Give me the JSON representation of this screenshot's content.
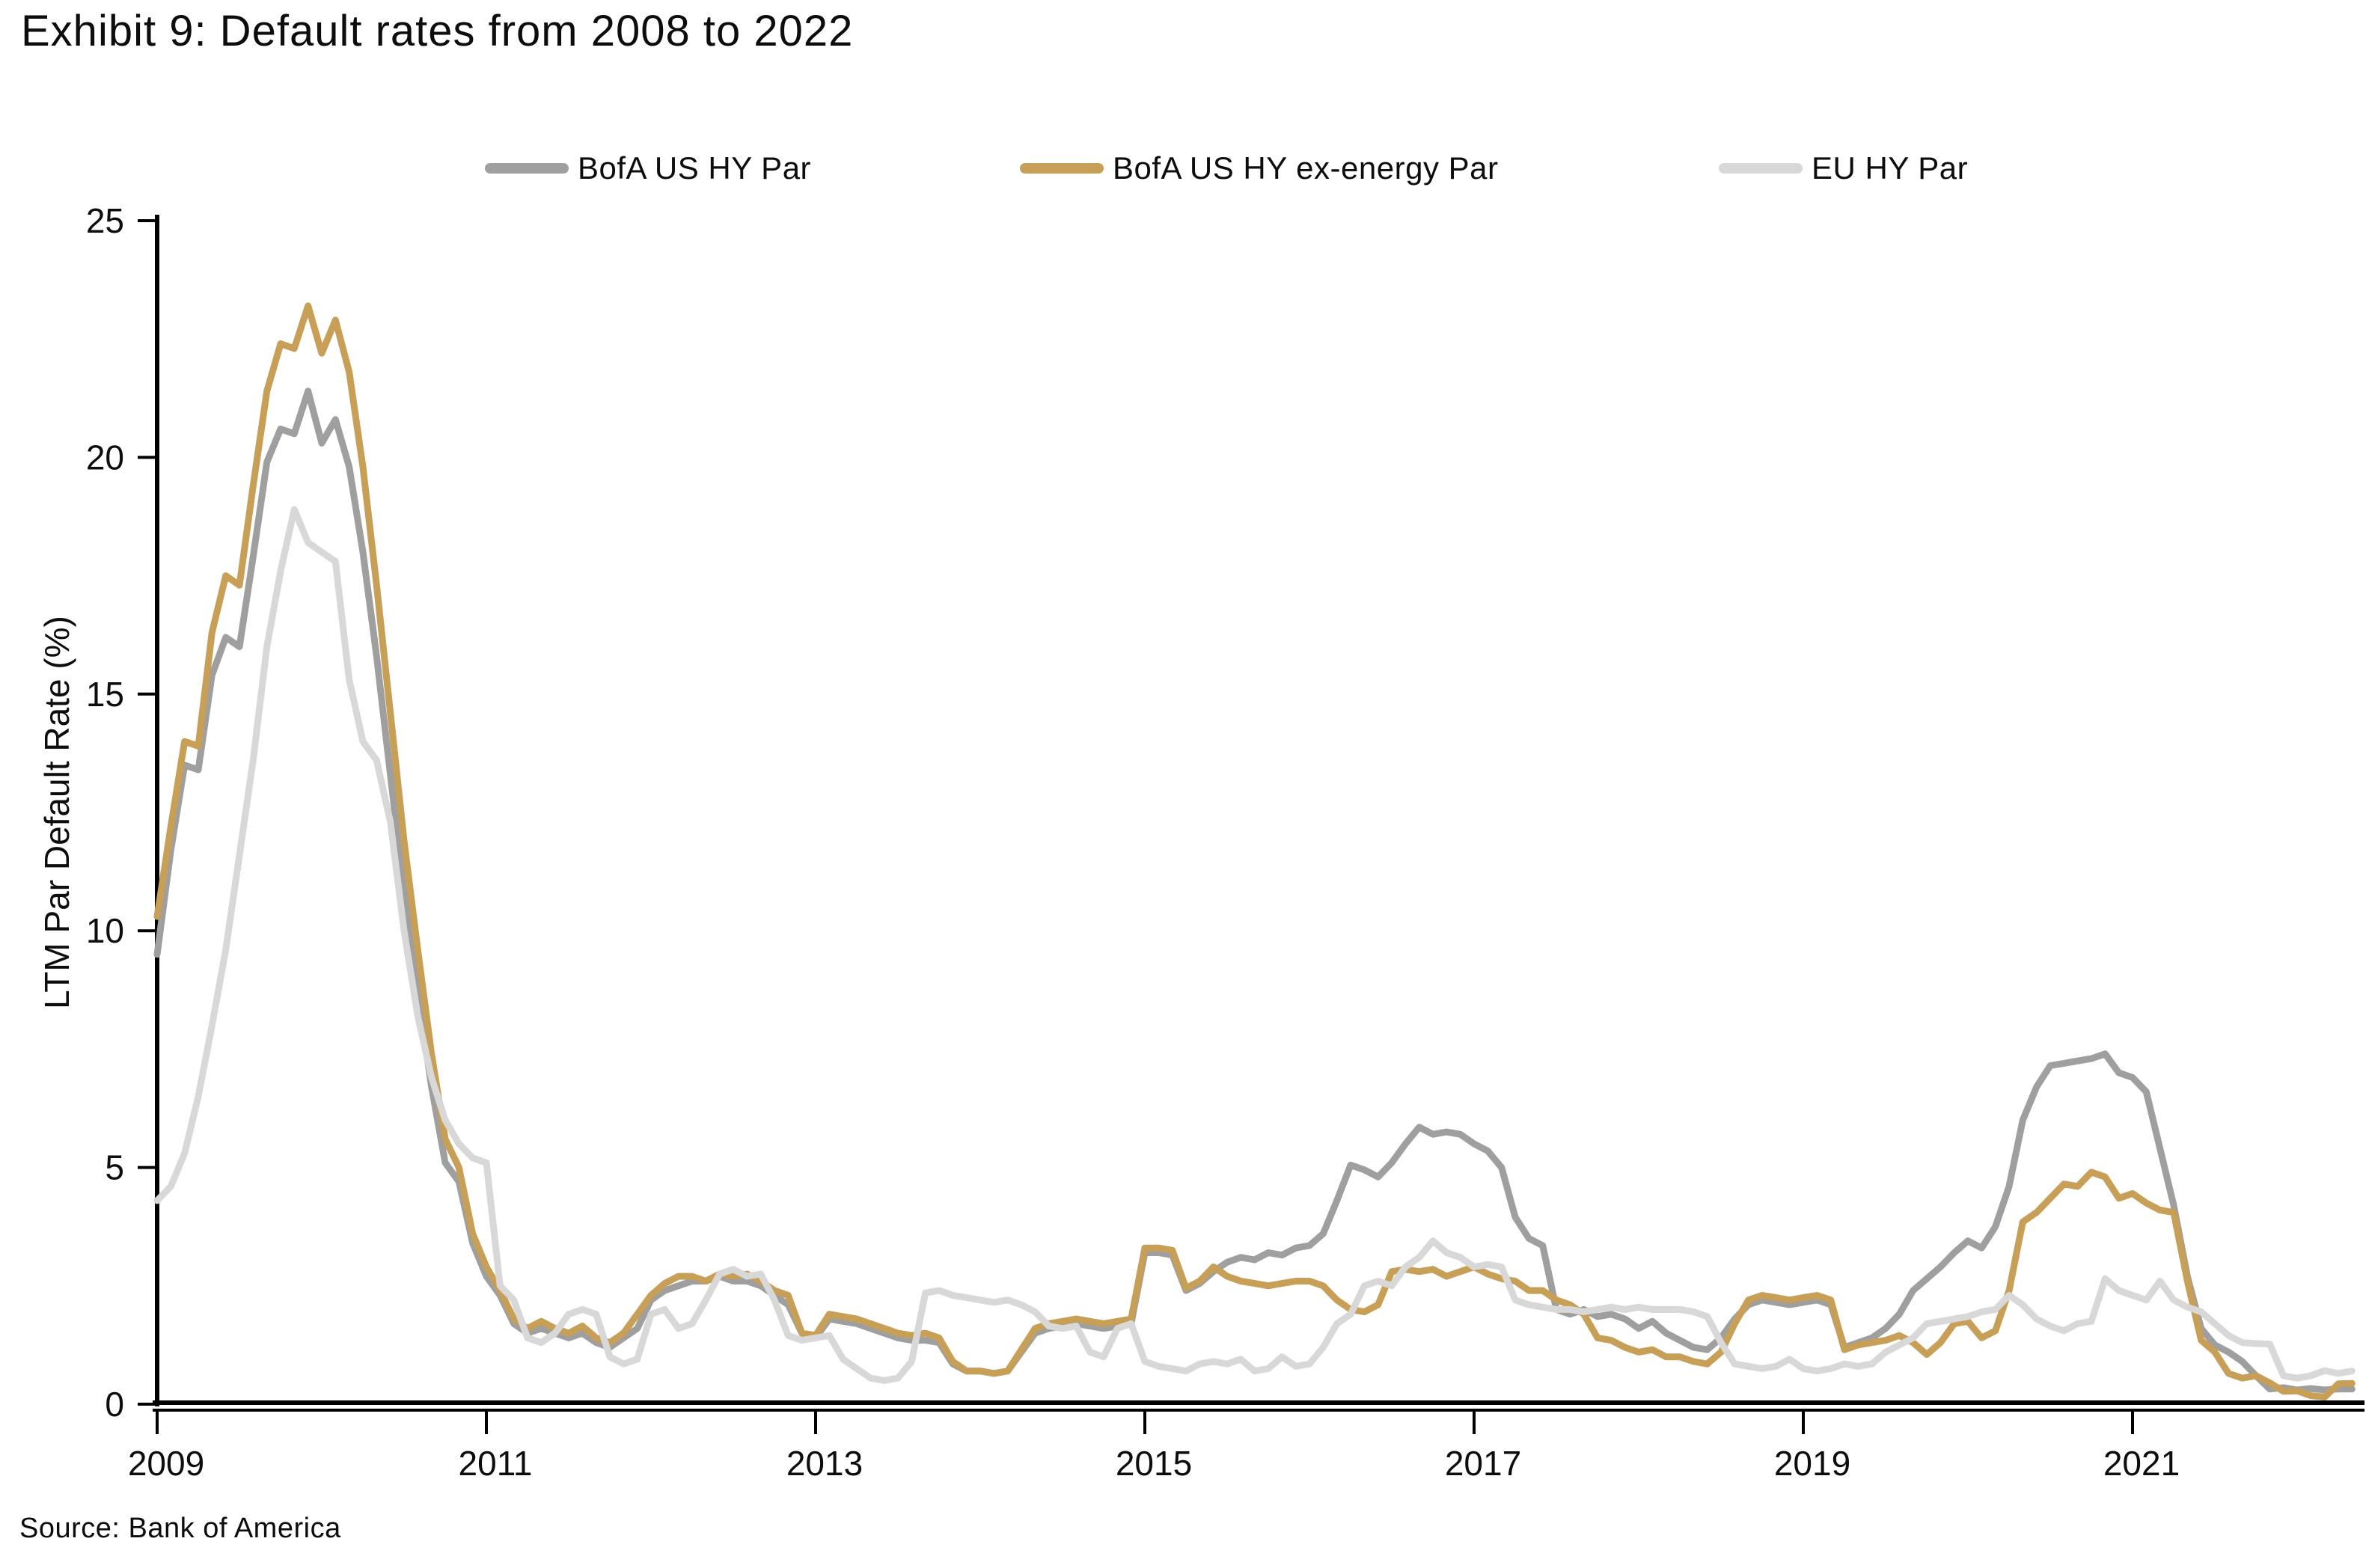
{
  "title": "Exhibit 9: Default rates from 2008 to 2022",
  "source": "Source: Bank of America",
  "colors": {
    "us_hy": "#9f9f9f",
    "us_hy_ex_energy": "#c79f56",
    "eu_hy": "#d8d8d8",
    "axis": "#000000",
    "text": "#0d0d0d"
  },
  "chart_data": {
    "type": "line",
    "title": "Exhibit 9: Default rates from 2008 to 2022",
    "xlabel": "",
    "ylabel": "LTM Par Default Rate (%)",
    "ylim": [
      0,
      25
    ],
    "yticks": [
      0,
      5,
      10,
      15,
      20,
      25
    ],
    "xticks": [
      2009,
      2011,
      2013,
      2015,
      2017,
      2019,
      2021
    ],
    "x_start": 2009.0,
    "x_step": 0.0833333,
    "grid": false,
    "legend_position": "top",
    "series": [
      {
        "name": "BofA US HY Par",
        "color": "#9f9f9f",
        "values": [
          9.5,
          11.7,
          13.5,
          13.4,
          15.4,
          16.2,
          16.0,
          17.9,
          19.9,
          20.6,
          20.5,
          21.4,
          20.3,
          20.8,
          19.8,
          18.0,
          15.8,
          13.3,
          10.8,
          8.7,
          6.7,
          5.1,
          4.7,
          3.4,
          2.7,
          2.3,
          1.7,
          1.5,
          1.6,
          1.5,
          1.4,
          1.5,
          1.3,
          1.2,
          1.4,
          1.6,
          2.2,
          2.4,
          2.5,
          2.6,
          2.6,
          2.7,
          2.6,
          2.6,
          2.5,
          2.3,
          2.1,
          1.5,
          1.4,
          1.8,
          1.75,
          1.7,
          1.6,
          1.5,
          1.4,
          1.35,
          1.35,
          1.3,
          0.85,
          0.7,
          0.7,
          0.65,
          0.7,
          1.1,
          1.5,
          1.6,
          1.65,
          1.7,
          1.65,
          1.6,
          1.65,
          1.7,
          3.2,
          3.2,
          3.15,
          2.4,
          2.55,
          2.8,
          3.0,
          3.1,
          3.05,
          3.2,
          3.15,
          3.3,
          3.35,
          3.6,
          4.3,
          5.05,
          4.95,
          4.8,
          5.1,
          5.5,
          5.85,
          5.7,
          5.75,
          5.7,
          5.5,
          5.35,
          5.0,
          3.95,
          3.5,
          3.35,
          2.0,
          1.9,
          2.0,
          1.85,
          1.9,
          1.8,
          1.6,
          1.75,
          1.5,
          1.35,
          1.2,
          1.15,
          1.4,
          1.8,
          2.1,
          2.2,
          2.15,
          2.1,
          2.15,
          2.2,
          2.1,
          1.2,
          1.3,
          1.4,
          1.6,
          1.9,
          2.4,
          2.65,
          2.9,
          3.2,
          3.45,
          3.3,
          3.75,
          4.6,
          6.0,
          6.7,
          7.15,
          7.2,
          7.25,
          7.3,
          7.4,
          7.0,
          6.9,
          6.6,
          5.4,
          4.2,
          2.7,
          1.6,
          1.25,
          1.1,
          0.9,
          0.6,
          0.32,
          0.35,
          0.3,
          0.33,
          0.3,
          0.32,
          0.32
        ]
      },
      {
        "name": "BofA US HY ex-energy Par",
        "color": "#c79f56",
        "values": [
          10.3,
          12.2,
          14.0,
          13.9,
          16.3,
          17.5,
          17.3,
          19.4,
          21.4,
          22.4,
          22.3,
          23.2,
          22.2,
          22.9,
          21.8,
          19.8,
          17.3,
          14.6,
          11.9,
          9.6,
          7.4,
          5.6,
          5.0,
          3.6,
          2.9,
          2.4,
          1.8,
          1.6,
          1.75,
          1.6,
          1.5,
          1.65,
          1.4,
          1.3,
          1.5,
          1.9,
          2.3,
          2.55,
          2.7,
          2.7,
          2.6,
          2.75,
          2.7,
          2.75,
          2.6,
          2.4,
          2.3,
          1.5,
          1.45,
          1.9,
          1.85,
          1.8,
          1.7,
          1.6,
          1.5,
          1.45,
          1.5,
          1.4,
          0.9,
          0.7,
          0.7,
          0.65,
          0.7,
          1.15,
          1.6,
          1.7,
          1.75,
          1.8,
          1.75,
          1.7,
          1.75,
          1.8,
          3.3,
          3.3,
          3.25,
          2.45,
          2.6,
          2.9,
          2.7,
          2.6,
          2.55,
          2.5,
          2.55,
          2.6,
          2.6,
          2.5,
          2.2,
          2.0,
          1.95,
          2.1,
          2.8,
          2.85,
          2.8,
          2.85,
          2.7,
          2.8,
          2.9,
          2.75,
          2.65,
          2.6,
          2.4,
          2.4,
          2.2,
          2.1,
          1.9,
          1.4,
          1.35,
          1.2,
          1.1,
          1.15,
          1.0,
          1.0,
          0.9,
          0.85,
          1.1,
          1.7,
          2.2,
          2.3,
          2.25,
          2.2,
          2.25,
          2.3,
          2.2,
          1.15,
          1.25,
          1.3,
          1.35,
          1.45,
          1.3,
          1.05,
          1.3,
          1.7,
          1.75,
          1.4,
          1.55,
          2.4,
          3.85,
          4.05,
          4.35,
          4.65,
          4.6,
          4.9,
          4.8,
          4.35,
          4.45,
          4.25,
          4.1,
          4.05,
          2.6,
          1.35,
          1.1,
          0.65,
          0.55,
          0.6,
          0.45,
          0.27,
          0.28,
          0.18,
          0.15,
          0.43,
          0.44
        ]
      },
      {
        "name": "EU HY Par",
        "color": "#d8d8d8",
        "values": [
          4.3,
          4.6,
          5.3,
          6.5,
          8.0,
          9.6,
          11.6,
          13.6,
          16.0,
          17.6,
          18.9,
          18.2,
          18.0,
          17.8,
          15.3,
          14.0,
          13.6,
          12.3,
          10.0,
          8.2,
          6.9,
          6.0,
          5.5,
          5.2,
          5.1,
          2.5,
          2.2,
          1.4,
          1.3,
          1.5,
          1.9,
          2.0,
          1.9,
          1.0,
          0.85,
          0.95,
          1.9,
          2.0,
          1.6,
          1.7,
          2.2,
          2.75,
          2.85,
          2.7,
          2.75,
          2.2,
          1.45,
          1.35,
          1.4,
          1.45,
          0.95,
          0.75,
          0.55,
          0.5,
          0.55,
          0.9,
          2.35,
          2.4,
          2.3,
          2.25,
          2.2,
          2.15,
          2.2,
          2.1,
          1.95,
          1.65,
          1.6,
          1.65,
          1.1,
          1.0,
          1.6,
          1.7,
          0.9,
          0.8,
          0.75,
          0.7,
          0.85,
          0.9,
          0.85,
          0.95,
          0.7,
          0.75,
          1.0,
          0.8,
          0.85,
          1.2,
          1.7,
          1.9,
          2.5,
          2.6,
          2.5,
          2.9,
          3.1,
          3.45,
          3.2,
          3.1,
          2.9,
          2.95,
          2.9,
          2.2,
          2.1,
          2.05,
          2.0,
          2.0,
          1.95,
          2.0,
          2.05,
          2.0,
          2.05,
          2.0,
          2.0,
          2.0,
          1.95,
          1.85,
          1.3,
          0.85,
          0.8,
          0.75,
          0.8,
          0.95,
          0.75,
          0.7,
          0.75,
          0.85,
          0.8,
          0.85,
          1.1,
          1.25,
          1.4,
          1.7,
          1.75,
          1.8,
          1.85,
          1.95,
          2.0,
          2.3,
          2.1,
          1.8,
          1.65,
          1.55,
          1.7,
          1.75,
          2.65,
          2.4,
          2.3,
          2.2,
          2.6,
          2.2,
          2.05,
          1.95,
          1.7,
          1.45,
          1.3,
          1.28,
          1.27,
          0.6,
          0.55,
          0.6,
          0.71,
          0.65,
          0.7
        ]
      }
    ]
  }
}
